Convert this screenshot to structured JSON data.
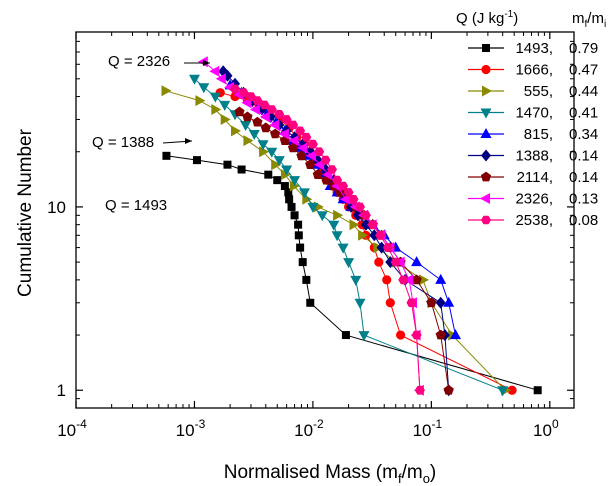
{
  "chart_data": {
    "type": "scatter",
    "xlabel": "Normalised Mass (m_f/m_o)",
    "xlabel_main": "Normalised Mass (m",
    "xlabel_sub1": "f",
    "xlabel_mid": "/m",
    "xlabel_sub2": "o",
    "xlabel_end": ")",
    "ylabel": "Cumulative Number",
    "x_scale": "log",
    "y_scale": "log",
    "xlim": [
      0.0001,
      1.6
    ],
    "ylim": [
      0.8,
      90
    ],
    "x_ticks": [
      {
        "value": 0.0001,
        "base": "10",
        "exp": "-4"
      },
      {
        "value": 0.001,
        "base": "10",
        "exp": "-3"
      },
      {
        "value": 0.01,
        "base": "10",
        "exp": "-2"
      },
      {
        "value": 0.1,
        "base": "10",
        "exp": "-1"
      },
      {
        "value": 1,
        "base": "10",
        "exp": "0"
      }
    ],
    "y_ticks": [
      {
        "value": 1,
        "label": "1"
      },
      {
        "value": 10,
        "label": "10"
      }
    ],
    "legend_header": {
      "q": "Q (J kg",
      "q_exp": "-1",
      "q_close": ")",
      "m": "m",
      "m_sub1": "f",
      "m_slash": "/m",
      "m_sub2": "i"
    },
    "legend_position": "top-right",
    "annotations": [
      {
        "text": "Q = 2326",
        "for_series": "2326"
      },
      {
        "text": "Q = 1388",
        "for_series": "1388"
      },
      {
        "text": "Q = 1493",
        "for_series": "1493"
      }
    ],
    "series": [
      {
        "name": "1493",
        "ratio": "0.79",
        "color": "#000000",
        "marker": "square",
        "points": [
          [
            0.79,
            1
          ],
          [
            0.019,
            2
          ],
          [
            0.0095,
            3
          ],
          [
            0.0088,
            4
          ],
          [
            0.0082,
            5
          ],
          [
            0.0078,
            6
          ],
          [
            0.0076,
            7
          ],
          [
            0.0075,
            8
          ],
          [
            0.007,
            9
          ],
          [
            0.0066,
            10
          ],
          [
            0.0063,
            11
          ],
          [
            0.0062,
            12
          ],
          [
            0.0058,
            13
          ],
          [
            0.005,
            14
          ],
          [
            0.0042,
            15
          ],
          [
            0.0025,
            16
          ],
          [
            0.0019,
            17
          ],
          [
            0.00105,
            18
          ],
          [
            0.00058,
            19
          ]
        ]
      },
      {
        "name": "1666",
        "ratio": "0.47",
        "color": "#ff0000",
        "marker": "circle",
        "points": [
          [
            0.48,
            1
          ],
          [
            0.055,
            2
          ],
          [
            0.045,
            3
          ],
          [
            0.042,
            4
          ],
          [
            0.036,
            5
          ],
          [
            0.033,
            6
          ],
          [
            0.028,
            7
          ],
          [
            0.026,
            8
          ],
          [
            0.023,
            9
          ],
          [
            0.02,
            10
          ],
          [
            0.018,
            11
          ],
          [
            0.016,
            12
          ],
          [
            0.0148,
            13
          ],
          [
            0.013,
            14
          ],
          [
            0.012,
            16
          ],
          [
            0.0105,
            18
          ],
          [
            0.0095,
            20
          ],
          [
            0.0085,
            22
          ],
          [
            0.0073,
            24
          ],
          [
            0.0063,
            27
          ],
          [
            0.0053,
            30
          ],
          [
            0.0043,
            33
          ],
          [
            0.0035,
            36
          ],
          [
            0.0028,
            38
          ],
          [
            0.0022,
            40
          ],
          [
            0.00165,
            42
          ]
        ]
      },
      {
        "name": "555",
        "ratio": "0.44",
        "color": "#8a8a00",
        "marker": "tri-right",
        "points": [
          [
            0.42,
            1
          ],
          [
            0.15,
            2
          ],
          [
            0.1,
            3
          ],
          [
            0.085,
            4
          ],
          [
            0.05,
            5
          ],
          [
            0.035,
            6
          ],
          [
            0.026,
            7
          ],
          [
            0.022,
            8
          ],
          [
            0.016,
            9
          ],
          [
            0.011,
            10
          ],
          [
            0.0088,
            11
          ],
          [
            0.0069,
            13
          ],
          [
            0.0058,
            15
          ],
          [
            0.0048,
            17
          ],
          [
            0.0038,
            20
          ],
          [
            0.0028,
            23
          ],
          [
            0.0022,
            26
          ],
          [
            0.0018,
            30
          ],
          [
            0.0015,
            34
          ],
          [
            0.0011,
            38
          ],
          [
            0.00057,
            43
          ]
        ]
      },
      {
        "name": "1470",
        "ratio": "0.41",
        "color": "#00808a",
        "marker": "tri-down",
        "points": [
          [
            0.4,
            1
          ],
          [
            0.027,
            2
          ],
          [
            0.025,
            3
          ],
          [
            0.023,
            4
          ],
          [
            0.02,
            5
          ],
          [
            0.018,
            6
          ],
          [
            0.016,
            7
          ],
          [
            0.015,
            8
          ],
          [
            0.012,
            9
          ],
          [
            0.01,
            10
          ],
          [
            0.0085,
            12
          ],
          [
            0.007,
            14
          ],
          [
            0.006,
            16
          ],
          [
            0.0052,
            18
          ],
          [
            0.0045,
            20
          ],
          [
            0.0038,
            22
          ],
          [
            0.0032,
            25
          ],
          [
            0.0027,
            28
          ],
          [
            0.0022,
            32
          ],
          [
            0.0018,
            36
          ],
          [
            0.0015,
            40
          ],
          [
            0.0012,
            45
          ],
          [
            0.001,
            50
          ]
        ]
      },
      {
        "name": "815",
        "ratio": "0.34",
        "color": "#0000ff",
        "marker": "triangle",
        "points": [
          [
            0.16,
            2
          ],
          [
            0.14,
            3
          ],
          [
            0.12,
            4
          ],
          [
            0.075,
            5
          ],
          [
            0.05,
            6
          ],
          [
            0.04,
            7
          ],
          [
            0.032,
            8
          ],
          [
            0.026,
            9
          ],
          [
            0.021,
            10
          ],
          [
            0.018,
            11
          ],
          [
            0.016,
            12
          ],
          [
            0.014,
            13
          ],
          [
            0.012,
            15
          ],
          [
            0.0105,
            17
          ],
          [
            0.009,
            19
          ],
          [
            0.0078,
            21
          ],
          [
            0.0068,
            23
          ],
          [
            0.0058,
            26
          ],
          [
            0.0049,
            29
          ],
          [
            0.0041,
            32
          ],
          [
            0.0035,
            35
          ],
          [
            0.003,
            38
          ],
          [
            0.0025,
            42
          ],
          [
            0.002,
            46
          ]
        ]
      },
      {
        "name": "1388",
        "ratio": "0.14",
        "color": "#000080",
        "marker": "diamond",
        "points": [
          [
            0.14,
            1
          ],
          [
            0.13,
            2
          ],
          [
            0.12,
            3
          ],
          [
            0.06,
            4
          ],
          [
            0.045,
            5
          ],
          [
            0.038,
            6
          ],
          [
            0.033,
            7
          ],
          [
            0.028,
            8
          ],
          [
            0.024,
            9
          ],
          [
            0.021,
            10
          ],
          [
            0.018,
            12
          ],
          [
            0.015,
            14
          ],
          [
            0.0128,
            16
          ],
          [
            0.011,
            18
          ],
          [
            0.0095,
            20
          ],
          [
            0.0082,
            22
          ],
          [
            0.007,
            24
          ],
          [
            0.006,
            26
          ],
          [
            0.0052,
            28
          ],
          [
            0.0044,
            31
          ],
          [
            0.0037,
            34
          ],
          [
            0.0031,
            38
          ],
          [
            0.0026,
            42
          ],
          [
            0.0022,
            47
          ],
          [
            0.0019,
            52
          ],
          [
            0.00175,
            55
          ]
        ]
      },
      {
        "name": "2114",
        "ratio": "0.14",
        "color": "#800000",
        "marker": "pentagon",
        "points": [
          [
            0.14,
            1
          ],
          [
            0.12,
            2
          ],
          [
            0.1,
            3
          ],
          [
            0.075,
            4
          ],
          [
            0.055,
            5
          ],
          [
            0.045,
            6
          ],
          [
            0.038,
            7
          ],
          [
            0.032,
            8
          ],
          [
            0.027,
            9
          ],
          [
            0.023,
            10
          ],
          [
            0.02,
            11
          ],
          [
            0.017,
            12
          ],
          [
            0.015,
            13
          ],
          [
            0.013,
            14
          ],
          [
            0.011,
            15
          ],
          [
            0.0095,
            17
          ],
          [
            0.008,
            19
          ],
          [
            0.0068,
            21
          ],
          [
            0.0058,
            23
          ],
          [
            0.0048,
            25
          ],
          [
            0.004,
            27
          ],
          [
            0.0034,
            29
          ],
          [
            0.0028,
            31
          ],
          [
            0.0024,
            33
          ]
        ]
      },
      {
        "name": "2326",
        "ratio": "0.13",
        "color": "#ff00ff",
        "marker": "tri-left",
        "points": [
          [
            0.08,
            1
          ],
          [
            0.075,
            2
          ],
          [
            0.07,
            3
          ],
          [
            0.065,
            4
          ],
          [
            0.055,
            5
          ],
          [
            0.045,
            6
          ],
          [
            0.038,
            7
          ],
          [
            0.032,
            8
          ],
          [
            0.027,
            9
          ],
          [
            0.023,
            10
          ],
          [
            0.019,
            11
          ],
          [
            0.016,
            13
          ],
          [
            0.0135,
            15
          ],
          [
            0.0115,
            17
          ],
          [
            0.0098,
            19
          ],
          [
            0.0083,
            21
          ],
          [
            0.007,
            23
          ],
          [
            0.0058,
            25
          ],
          [
            0.0048,
            28
          ],
          [
            0.004,
            31
          ],
          [
            0.0033,
            34
          ],
          [
            0.0028,
            37
          ],
          [
            0.0024,
            41
          ],
          [
            0.002,
            45
          ],
          [
            0.0017,
            50
          ],
          [
            0.0015,
            55
          ],
          [
            0.0012,
            62
          ]
        ]
      },
      {
        "name": "2538",
        "ratio": "0.08",
        "color": "#ff0080",
        "marker": "hexagon",
        "points": [
          [
            0.08,
            1
          ],
          [
            0.075,
            2
          ],
          [
            0.068,
            3
          ],
          [
            0.058,
            4
          ],
          [
            0.05,
            5
          ],
          [
            0.043,
            6
          ],
          [
            0.037,
            7
          ],
          [
            0.032,
            8
          ],
          [
            0.028,
            9
          ],
          [
            0.025,
            10
          ],
          [
            0.022,
            11
          ],
          [
            0.02,
            12
          ],
          [
            0.018,
            13
          ],
          [
            0.016,
            14
          ],
          [
            0.0145,
            16
          ],
          [
            0.0128,
            18
          ],
          [
            0.0113,
            20
          ],
          [
            0.01,
            22
          ],
          [
            0.0088,
            24
          ],
          [
            0.0078,
            26
          ],
          [
            0.0068,
            28
          ],
          [
            0.006,
            30
          ],
          [
            0.0052,
            32
          ],
          [
            0.0045,
            34
          ],
          [
            0.0039,
            36
          ],
          [
            0.0034,
            38
          ],
          [
            0.003,
            40
          ],
          [
            0.0026,
            42
          ],
          [
            0.0022,
            44
          ]
        ]
      }
    ]
  }
}
